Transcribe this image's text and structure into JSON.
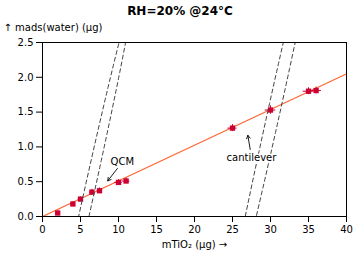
{
  "chart_data": {
    "type": "scatter",
    "title": "RH=20% @24°C",
    "x_label": "mTiO₂ (μg)",
    "y_label": "mads(water) (μg)",
    "xlim": [
      0,
      40
    ],
    "ylim": [
      0,
      2.5
    ],
    "xticks": [
      0,
      5,
      10,
      15,
      20,
      25,
      30,
      35,
      40
    ],
    "yticks": [
      {
        "value": 0,
        "label": "0.0"
      },
      0.5,
      {
        "value": 1,
        "label": "1.0"
      },
      1.5,
      {
        "value": 2,
        "label": "2.0"
      },
      2.5
    ],
    "grid": false,
    "series": [
      {
        "type": "line",
        "color": "#ff6633",
        "line_style": "solid",
        "x": [
          0,
          40
        ],
        "values": [
          0,
          2.05
        ]
      },
      {
        "type": "scatter",
        "color": "#cc0033",
        "marker": "square",
        "x": [
          2,
          4,
          5,
          6.5,
          7.5,
          10,
          11,
          25,
          30,
          35,
          36
        ],
        "values": [
          0.05,
          0.18,
          0.25,
          0.35,
          0.37,
          0.49,
          0.51,
          1.27,
          1.53,
          1.8,
          1.81
        ],
        "xerr": [
          0.3,
          0.3,
          0.3,
          0.3,
          0.3,
          0.5,
          0.5,
          0.6,
          0.7,
          0.7,
          0.7
        ],
        "yerr": [
          0.03,
          0.03,
          0.03,
          0.04,
          0.04,
          0.04,
          0.04,
          0.05,
          0.06,
          0.05,
          0.05
        ]
      }
    ],
    "ellipses": [
      {
        "center": [
          6.0,
          0.28
        ],
        "width": 13,
        "height": 0.6,
        "angle": 26,
        "color": "#444444",
        "line_style": "dashed"
      },
      {
        "center": [
          30.5,
          1.53
        ],
        "width": 15,
        "height": 0.72,
        "angle": 26,
        "color": "#444444",
        "line_style": "dashed"
      }
    ],
    "annotations": [
      {
        "text": "QCM",
        "x": 10.5,
        "y": 0.78,
        "arrow_x": 8.5,
        "arrow_y": 0.5
      },
      {
        "text": "cantilever",
        "x": 27.5,
        "y": 0.85,
        "arrow_x": 27.0,
        "arrow_y": 1.18
      }
    ]
  }
}
